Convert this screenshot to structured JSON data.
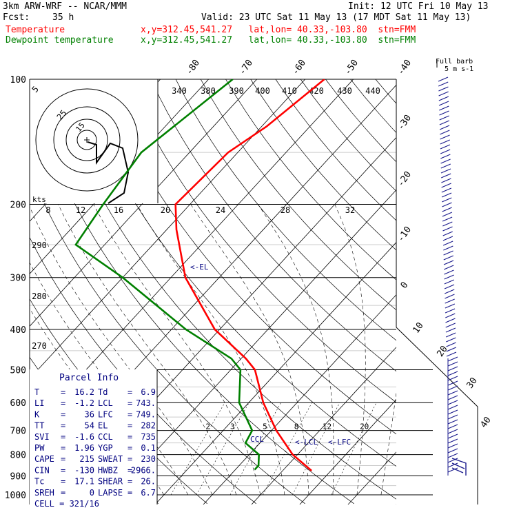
{
  "header": {
    "model": "3km ARW-WRF -- NCAR/MMM",
    "init": "Init: 12 UTC Fri 10 May 13",
    "fcst_label": "Fcst:",
    "fcst_value": "35 h",
    "valid": "Valid: 23 UTC Sat 11 May 13 (17 MDT Sat 11 May 13)",
    "temp_label": "Temperature",
    "dew_label": "Dewpoint temperature",
    "temp_loc": "x,y=312.45,541.27   lat,lon= 40.33,-103.80  stn=FMM",
    "dew_loc": "x,y=312.45,541.27   lat,lon= 40.33,-103.80  stn=FMM"
  },
  "colors": {
    "temperature": "#ff0000",
    "dewpoint": "#008000",
    "label_blue": "#000080",
    "line": "#000000",
    "wind": "#1a1a8c"
  },
  "chart_data": {
    "type": "line",
    "title": "",
    "pressure_ticks": [
      "100",
      "200",
      "300",
      "400",
      "500",
      "600",
      "700",
      "800",
      "900",
      "1000"
    ],
    "isotherm_labels": [
      "-80",
      "-70",
      "-60",
      "-50",
      "-40",
      "-30",
      "-20",
      "-10",
      "0",
      "10",
      "20",
      "30",
      "40"
    ],
    "theta_labels": [
      "340",
      "380",
      "390",
      "400",
      "410",
      "420",
      "430",
      "440",
      "290",
      "280",
      "270"
    ],
    "mixing_labels": [
      "2",
      "3",
      "5",
      "8",
      "12",
      "20"
    ],
    "series": [
      {
        "name": "Temperature",
        "units": "C",
        "points": [
          [
            100,
            -56
          ],
          [
            130,
            -59
          ],
          [
            150,
            -62
          ],
          [
            200,
            -63
          ],
          [
            230,
            -58
          ],
          [
            300,
            -47
          ],
          [
            400,
            -31
          ],
          [
            470,
            -19
          ],
          [
            500,
            -15
          ],
          [
            600,
            -7
          ],
          [
            700,
            1
          ],
          [
            800,
            9
          ],
          [
            875,
            16
          ]
        ]
      },
      {
        "name": "Dewpoint temperature",
        "units": "C",
        "points": [
          [
            100,
            -75
          ],
          [
            150,
            -80
          ],
          [
            200,
            -78
          ],
          [
            250,
            -76
          ],
          [
            300,
            -60
          ],
          [
            400,
            -37
          ],
          [
            470,
            -22
          ],
          [
            500,
            -18
          ],
          [
            600,
            -12
          ],
          [
            700,
            -4
          ],
          [
            750,
            -3
          ],
          [
            800,
            2
          ],
          [
            850,
            4
          ],
          [
            870,
            4
          ]
        ]
      }
    ],
    "annotations": {
      "el": "<-EL",
      "ccl": "CCL",
      "lcl": "<-LCL",
      "lfc": "<-LFC"
    },
    "hodograph": {
      "kts_label": "kts",
      "ring_labels": [
        "5",
        "25",
        "15"
      ],
      "speed_ticks": [
        "8",
        "12",
        "16",
        "20",
        "24",
        "28",
        "32"
      ]
    },
    "wind_barbs": {
      "legend": "Full barb",
      "unit": "5 m s-1"
    }
  },
  "parcel_info": {
    "title": "Parcel Info",
    "rows": [
      {
        "k1": "T",
        "v1": "16.2",
        "k2": "Td",
        "v2": "6.9"
      },
      {
        "k1": "LI",
        "v1": "-1.2",
        "k2": "LCL",
        "v2": "743."
      },
      {
        "k1": "K",
        "v1": "36",
        "k2": "LFC",
        "v2": "749."
      },
      {
        "k1": "TT",
        "v1": "54",
        "k2": "EL",
        "v2": "282"
      },
      {
        "k1": "SVI",
        "v1": "-1.6",
        "k2": "CCL",
        "v2": "735"
      },
      {
        "k1": "PW",
        "v1": "1.96",
        "k2": "YGP",
        "v2": "0.1"
      },
      {
        "k1": "CAPE",
        "v1": "215",
        "k2": "SWEAT",
        "v2": "230"
      },
      {
        "k1": "CIN",
        "v1": "-130",
        "k2": "HWBZ",
        "v2": "2966."
      },
      {
        "k1": "Tc",
        "v1": "17.1",
        "k2": "SHEAR",
        "v2": "26."
      },
      {
        "k1": "SREH",
        "v1": "0",
        "k2": "LAPSE",
        "v2": "6.7"
      }
    ],
    "cell": "CELL = 321/16"
  }
}
